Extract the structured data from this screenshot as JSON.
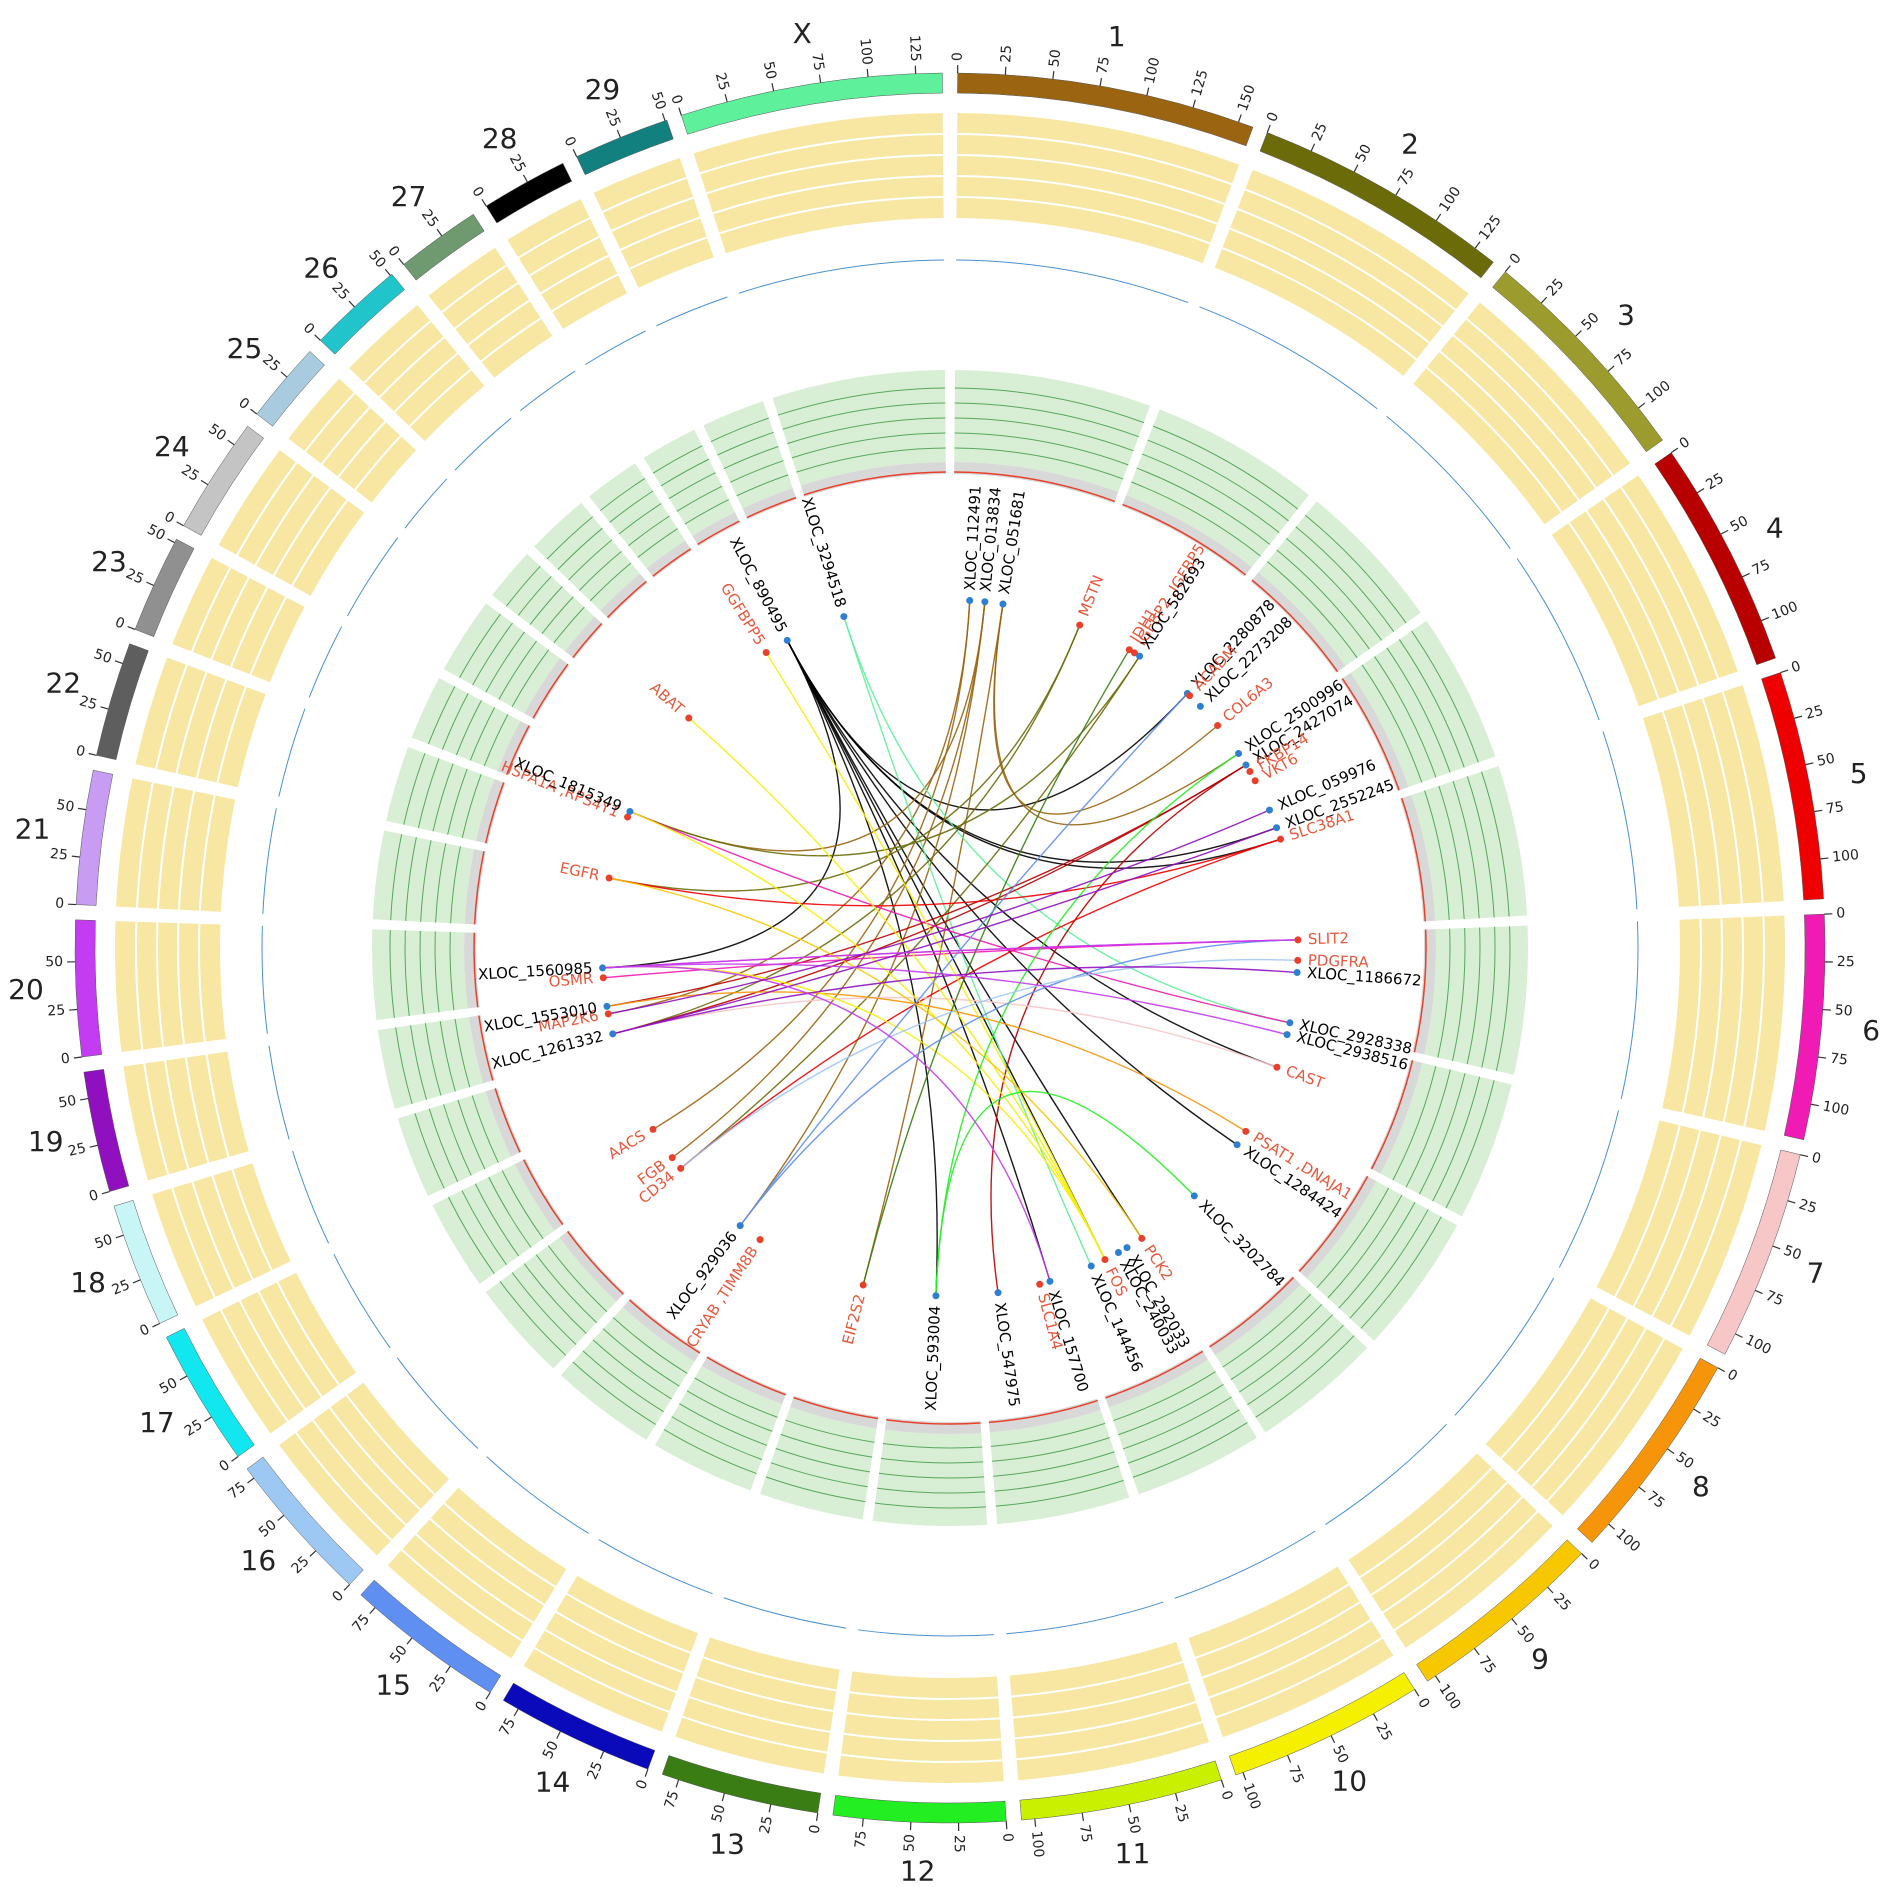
{
  "chart_data": {
    "type": "circos",
    "chromosomes": [
      {
        "name": "1",
        "length": 158,
        "color": "#9a6410",
        "ticks": [
          0,
          25,
          50,
          75,
          100,
          125,
          150
        ]
      },
      {
        "name": "2",
        "length": 137,
        "color": "#6b6b0a",
        "ticks": [
          0,
          25,
          50,
          75,
          100,
          125
        ]
      },
      {
        "name": "3",
        "length": 121,
        "color": "#9c9c2e",
        "ticks": [
          0,
          25,
          50,
          75,
          100
        ]
      },
      {
        "name": "4",
        "length": 121,
        "color": "#b80000",
        "ticks": [
          0,
          25,
          50,
          75,
          100
        ]
      },
      {
        "name": "5",
        "length": 121,
        "color": "#ee0000",
        "ticks": [
          0,
          25,
          50,
          75,
          100
        ]
      },
      {
        "name": "6",
        "length": 119,
        "color": "#f01ab4",
        "ticks": [
          0,
          25,
          50,
          75,
          100
        ]
      },
      {
        "name": "7",
        "length": 112,
        "color": "#f7c6c6",
        "ticks": [
          0,
          25,
          50,
          75,
          100
        ]
      },
      {
        "name": "8",
        "length": 113,
        "color": "#f6950a",
        "ticks": [
          0,
          25,
          50,
          75,
          100
        ]
      },
      {
        "name": "9",
        "length": 105,
        "color": "#f7c800",
        "ticks": [
          0,
          25,
          50,
          75,
          100
        ]
      },
      {
        "name": "10",
        "length": 104,
        "color": "#f5f000",
        "ticks": [
          0,
          25,
          50,
          75,
          100
        ]
      },
      {
        "name": "11",
        "length": 107,
        "color": "#c8f000",
        "ticks": [
          0,
          25,
          50,
          75,
          100
        ]
      },
      {
        "name": "12",
        "length": 91,
        "color": "#22ee22",
        "ticks": [
          0,
          25,
          50,
          75
        ]
      },
      {
        "name": "13",
        "length": 84,
        "color": "#3a7d14",
        "ticks": [
          0,
          25,
          50,
          75
        ]
      },
      {
        "name": "14",
        "length": 84,
        "color": "#0a0aba",
        "ticks": [
          0,
          25,
          50,
          75
        ]
      },
      {
        "name": "15",
        "length": 85,
        "color": "#5f8ff0",
        "ticks": [
          0,
          25,
          50,
          75
        ]
      },
      {
        "name": "16",
        "length": 81,
        "color": "#9ec8f4",
        "ticks": [
          0,
          25,
          50,
          75
        ]
      },
      {
        "name": "17",
        "length": 73,
        "color": "#12e6ee",
        "ticks": [
          0,
          25,
          50
        ]
      },
      {
        "name": "18",
        "length": 66,
        "color": "#c8f6f6",
        "ticks": [
          0,
          25,
          50
        ]
      },
      {
        "name": "19",
        "length": 64,
        "color": "#9010c0",
        "ticks": [
          0,
          25,
          50
        ]
      },
      {
        "name": "20",
        "length": 72,
        "color": "#c43cf2",
        "ticks": [
          0,
          25,
          50
        ]
      },
      {
        "name": "21",
        "length": 71,
        "color": "#c79cf2",
        "ticks": [
          0,
          25,
          50
        ]
      },
      {
        "name": "22",
        "length": 61,
        "color": "#5e5e5e",
        "ticks": [
          0,
          25,
          50
        ]
      },
      {
        "name": "23",
        "length": 52,
        "color": "#909090",
        "ticks": [
          0,
          25,
          50
        ]
      },
      {
        "name": "24",
        "length": 62,
        "color": "#c4c4c4",
        "ticks": [
          0,
          25,
          50
        ]
      },
      {
        "name": "25",
        "length": 43,
        "color": "#a9cbe0",
        "ticks": [
          0,
          25
        ]
      },
      {
        "name": "26",
        "length": 51,
        "color": "#22c4cc",
        "ticks": [
          0,
          25,
          50
        ]
      },
      {
        "name": "27",
        "length": 45,
        "color": "#6f9a6f",
        "ticks": [
          0,
          25
        ]
      },
      {
        "name": "28",
        "length": 46,
        "color": "#000000",
        "ticks": [
          0,
          25
        ]
      },
      {
        "name": "29",
        "length": 51,
        "color": "#138080",
        "ticks": [
          0,
          25,
          50
        ]
      },
      {
        "name": "X",
        "length": 139,
        "color": "#5ef09a",
        "ticks": [
          0,
          25,
          50,
          75,
          100,
          125
        ]
      }
    ],
    "genes": [
      {
        "label": "XLOC_112491",
        "chromosome": "1",
        "position": 22,
        "color": "#000000"
      },
      {
        "label": "XLOC_013834",
        "chromosome": "1",
        "position": 42,
        "color": "#000000"
      },
      {
        "label": "XLOC_051681",
        "chromosome": "1",
        "position": 66,
        "color": "#000000"
      },
      {
        "label": "MSTN",
        "chromosome": "2",
        "position": 5,
        "color": "#e8583c"
      },
      {
        "label": "IDH1",
        "chromosome": "2",
        "position": 78,
        "color": "#e8583c"
      },
      {
        "label": "IGFBP2 ,IGFBP5",
        "chromosome": "2",
        "position": 86,
        "color": "#e8583c"
      },
      {
        "label": "XLOC_582693",
        "chromosome": "2",
        "position": 94,
        "color": "#000000"
      },
      {
        "label": "XLOC_2280878",
        "chromosome": "3",
        "position": 29,
        "color": "#000000"
      },
      {
        "label": "ACADM",
        "chromosome": "3",
        "position": 33,
        "color": "#e8583c"
      },
      {
        "label": "XLOC_2273208",
        "chromosome": "3",
        "position": 53,
        "color": "#000000"
      },
      {
        "label": "COL6A3",
        "chromosome": "3",
        "position": 87,
        "color": "#e8583c"
      },
      {
        "label": "XLOC_2500996",
        "chromosome": "4",
        "position": 4,
        "color": "#000000"
      },
      {
        "label": "XLOC_2427074",
        "chromosome": "4",
        "position": 22,
        "color": "#000000"
      },
      {
        "label": "FKBP14",
        "chromosome": "4",
        "position": 32,
        "color": "#e8583c"
      },
      {
        "label": "VKT6",
        "chromosome": "4",
        "position": 46,
        "color": "#e8583c"
      },
      {
        "label": "XLOC_059976",
        "chromosome": "4",
        "position": 89,
        "color": "#000000"
      },
      {
        "label": "XLOC_2552245",
        "chromosome": "4",
        "position": 114,
        "color": "#000000"
      },
      {
        "label": "SLC38A1",
        "chromosome": "5",
        "position": 1,
        "color": "#e8583c"
      },
      {
        "label": "SLIT2",
        "chromosome": "6",
        "position": 7,
        "color": "#e8583c"
      },
      {
        "label": "PDGFRA",
        "chromosome": "6",
        "position": 34,
        "color": "#e8583c"
      },
      {
        "label": "XLOC_1186672",
        "chromosome": "6",
        "position": 50,
        "color": "#000000"
      },
      {
        "label": "XLOC_2928338",
        "chromosome": "6",
        "position": 117,
        "color": "#000000"
      },
      {
        "label": "XLOC_2938516",
        "chromosome": "7",
        "position": 6,
        "color": "#000000"
      },
      {
        "label": "CAST",
        "chromosome": "7",
        "position": 51,
        "color": "#e8583c"
      },
      {
        "label": "PSAT1 ,DNAJA1",
        "chromosome": "8",
        "position": 25,
        "color": "#e8583c"
      },
      {
        "label": "XLOC_1284424",
        "chromosome": "8",
        "position": 46,
        "color": "#000000"
      },
      {
        "label": "XLOC_3202784",
        "chromosome": "9",
        "position": 13,
        "color": "#000000"
      },
      {
        "label": "PCK2",
        "chromosome": "9",
        "position": 102,
        "color": "#e8583c"
      },
      {
        "label": "XLOC_292033",
        "chromosome": "10",
        "position": 12,
        "color": "#000000"
      },
      {
        "label": "XLOC_240033",
        "chromosome": "10",
        "position": 25,
        "color": "#000000"
      },
      {
        "label": "FOS",
        "chromosome": "10",
        "position": 45,
        "color": "#e8583c"
      },
      {
        "label": "XLOC_144456",
        "chromosome": "10",
        "position": 65,
        "color": "#000000"
      },
      {
        "label": "XLOC_157700",
        "chromosome": "11",
        "position": 11,
        "color": "#000000"
      },
      {
        "label": "SLC1A4",
        "chromosome": "11",
        "position": 25,
        "color": "#e8583c"
      },
      {
        "label": "XLOC_547975",
        "chromosome": "11",
        "position": 81,
        "color": "#000000"
      },
      {
        "label": "XLOC_593004",
        "chromosome": "12",
        "position": 48,
        "color": "#000000"
      },
      {
        "label": "EIF2S2",
        "chromosome": "13",
        "position": 46,
        "color": "#e8583c"
      },
      {
        "label": "CRYAB ,TIMM8B",
        "chromosome": "15",
        "position": 11,
        "color": "#e8583c"
      },
      {
        "label": "XLOC_929036",
        "chromosome": "15",
        "position": 43,
        "color": "#000000"
      },
      {
        "label": "CD34",
        "chromosome": "16",
        "position": 59,
        "color": "#e8583c"
      },
      {
        "label": "FGB",
        "chromosome": "16",
        "position": 77,
        "color": "#e8583c"
      },
      {
        "label": "AACS",
        "chromosome": "17",
        "position": 33,
        "color": "#e8583c"
      },
      {
        "label": "XLOC_1261332",
        "chromosome": "19",
        "position": 15,
        "color": "#000000"
      },
      {
        "label": "MAP2K6",
        "chromosome": "19",
        "position": 42,
        "color": "#e8583c"
      },
      {
        "label": "XLOC_1553010",
        "chromosome": "19",
        "position": 52,
        "color": "#000000"
      },
      {
        "label": "OSMR",
        "chromosome": "20",
        "position": 18,
        "color": "#e8583c"
      },
      {
        "label": "XLOC_1560985",
        "chromosome": "20",
        "position": 31,
        "color": "#000000"
      },
      {
        "label": "EGFR",
        "chromosome": "21",
        "position": 70,
        "color": "#e8583c"
      },
      {
        "label": "HSPA1A ,RPS4Y1",
        "chromosome": "23",
        "position": 6,
        "color": "#e8583c"
      },
      {
        "label": "XLOC_1815349",
        "chromosome": "23",
        "position": 14,
        "color": "#000000"
      },
      {
        "label": "ABAT",
        "chromosome": "25",
        "position": 30,
        "color": "#e8583c"
      },
      {
        "label": "GGFBPP5",
        "chromosome": "28",
        "position": 1,
        "color": "#e8583c"
      },
      {
        "label": "XLOC_890495",
        "chromosome": "28",
        "position": 33,
        "color": "#000000"
      },
      {
        "label": "XLOC_3294518",
        "chromosome": "X",
        "position": 1,
        "color": "#000000"
      }
    ],
    "links": [
      {
        "source": "XLOC_890495",
        "target": "SLC38A1"
      },
      {
        "source": "XLOC_890495",
        "target": "XLOC_2552245"
      },
      {
        "source": "XLOC_890495",
        "target": "FOS"
      },
      {
        "source": "XLOC_890495",
        "target": "PCK2"
      },
      {
        "source": "XLOC_890495",
        "target": "XLOC_1284424"
      },
      {
        "source": "XLOC_890495",
        "target": "XLOC_593004"
      },
      {
        "source": "XLOC_890495",
        "target": "CAST"
      },
      {
        "source": "XLOC_890495",
        "target": "XLOC_2280878"
      },
      {
        "source": "XLOC_890495",
        "target": "XLOC_1560985"
      },
      {
        "source": "XLOC_890495",
        "target": "XLOC_157700"
      },
      {
        "source": "XLOC_112491",
        "target": "MAP2K6"
      },
      {
        "source": "XLOC_112491",
        "target": "AACS"
      },
      {
        "source": "XLOC_013834",
        "target": "XLOC_1815349"
      },
      {
        "source": "XLOC_013834",
        "target": "XLOC_929036"
      },
      {
        "source": "XLOC_051681",
        "target": "XLOC_2500996"
      },
      {
        "source": "XLOC_051681",
        "target": "COL6A3"
      },
      {
        "source": "XLOC_051681",
        "target": "EIF2S2"
      },
      {
        "source": "XLOC_013834",
        "target": "FGB"
      },
      {
        "source": "XLOC_3294518",
        "target": "XLOC_144456"
      },
      {
        "source": "XLOC_3294518",
        "target": "XLOC_2928338"
      },
      {
        "source": "MSTN",
        "target": "EGFR"
      },
      {
        "source": "MSTN",
        "target": "XLOC_1261332"
      },
      {
        "source": "XLOC_582693",
        "target": "XLOC_1815349"
      },
      {
        "source": "XLOC_582693",
        "target": "CD34"
      },
      {
        "source": "XLOC_2427074",
        "target": "XLOC_1553010"
      },
      {
        "source": "XLOC_2427074",
        "target": "XLOC_1261332"
      },
      {
        "source": "XLOC_2427074",
        "target": "XLOC_547975"
      },
      {
        "source": "SLC38A1",
        "target": "EGFR"
      },
      {
        "source": "SLC38A1",
        "target": "CD34"
      },
      {
        "source": "SLIT2",
        "target": "XLOC_1560985"
      },
      {
        "source": "SLIT2",
        "target": "OSMR"
      },
      {
        "source": "XLOC_2928338",
        "target": "XLOC_1815349"
      },
      {
        "source": "CAST",
        "target": "XLOC_1261332"
      },
      {
        "source": "PSAT1 ,DNAJA1",
        "target": "XLOC_1553010"
      },
      {
        "source": "FOS",
        "target": "XLOC_1560985"
      },
      {
        "source": "FOS",
        "target": "ABAT"
      },
      {
        "source": "FOS",
        "target": "GGFBPP5"
      },
      {
        "source": "FOS",
        "target": "XLOC_1815349"
      },
      {
        "source": "PCK2",
        "target": "EGFR"
      },
      {
        "source": "XLOC_593004",
        "target": "XLOC_2500996"
      },
      {
        "source": "XLOC_593004",
        "target": "XLOC_3202784"
      },
      {
        "source": "EIF2S2",
        "target": "IDH1"
      },
      {
        "source": "XLOC_929036",
        "target": "XLOC_2280878"
      },
      {
        "source": "XLOC_929036",
        "target": "SLIT2"
      },
      {
        "source": "CD34",
        "target": "PDGFRA"
      },
      {
        "source": "XLOC_1261332",
        "target": "XLOC_1186672"
      },
      {
        "source": "XLOC_1261332",
        "target": "XLOC_2552245"
      },
      {
        "source": "XLOC_1560985",
        "target": "SLIT2"
      },
      {
        "source": "XLOC_1560985",
        "target": "XLOC_157700"
      },
      {
        "source": "XLOC_1560985",
        "target": "XLOC_2938516"
      },
      {
        "source": "MAP2K6",
        "target": "XLOC_059976"
      }
    ]
  }
}
